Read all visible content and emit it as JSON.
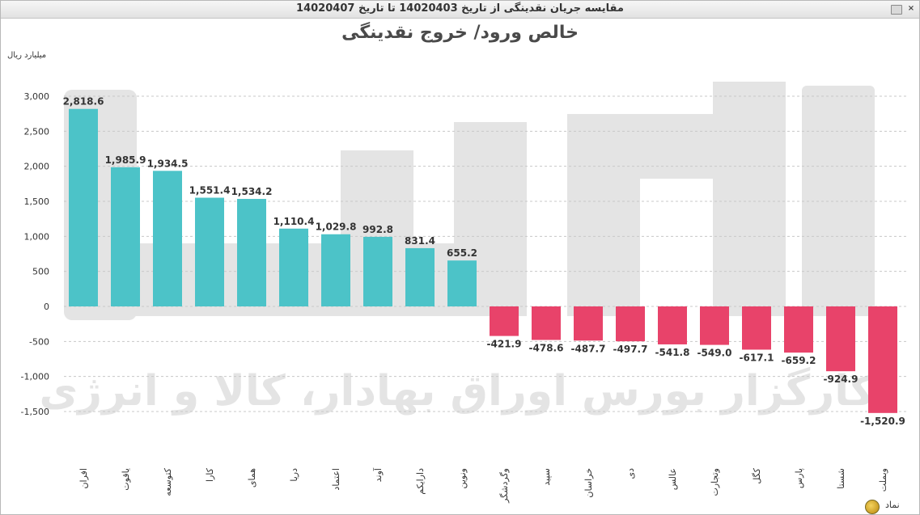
{
  "window": {
    "title": "مقایسه جریان نقدینگی از تاریخ 14020403 تا تاریخ 14020407"
  },
  "chart_data": {
    "type": "bar",
    "title": "خالص ورود/ خروج نقدینگی",
    "ylabel": "میلیارد ریال",
    "xlabel": "نماد",
    "ylim": [
      -1800,
      3300
    ],
    "yticks": [
      3000,
      2500,
      2000,
      1500,
      1000,
      500,
      0,
      -500,
      -1000,
      -1500
    ],
    "ytick_labels": [
      "3,000",
      "2,500",
      "2,000",
      "1,500",
      "1,000",
      "500",
      "0",
      "-500",
      "-1,000",
      "-1,500"
    ],
    "grid": true,
    "categories": [
      "افران",
      "یاقوت",
      "کتوسعه",
      "کارا",
      "همای",
      "دریا",
      "اعتماد",
      "آوند",
      "دارایکم",
      "ونوین",
      "وگردشگر",
      "سپید",
      "خراسان",
      "دی",
      "عالس",
      "وتجارت",
      "کگل",
      "پارس",
      "شستا",
      "وبملت"
    ],
    "values": [
      2818.6,
      1985.9,
      1934.5,
      1551.4,
      1534.2,
      1110.4,
      1029.8,
      992.8,
      831.4,
      655.2,
      -421.9,
      -478.6,
      -487.7,
      -497.7,
      -541.8,
      -549.0,
      -617.1,
      -659.2,
      -924.9,
      -1520.9
    ],
    "value_labels": [
      "2,818.6",
      "1,985.9",
      "1,934.5",
      "1,551.4",
      "1,534.2",
      "1,110.4",
      "1,029.8",
      "992.8",
      "831.4",
      "655.2",
      "-421.9",
      "-478.6",
      "-487.7",
      "-497.7",
      "-541.8",
      "-549.0",
      "-617.1",
      "-659.2",
      "-924.9",
      "-1,520.9"
    ],
    "colors": {
      "positive": "#4cc3c8",
      "negative": "#e8436a",
      "grid": "#c8c8c8"
    },
    "watermark": "کارگزار بورس اوراق بهادار، کالا و انرژی"
  }
}
